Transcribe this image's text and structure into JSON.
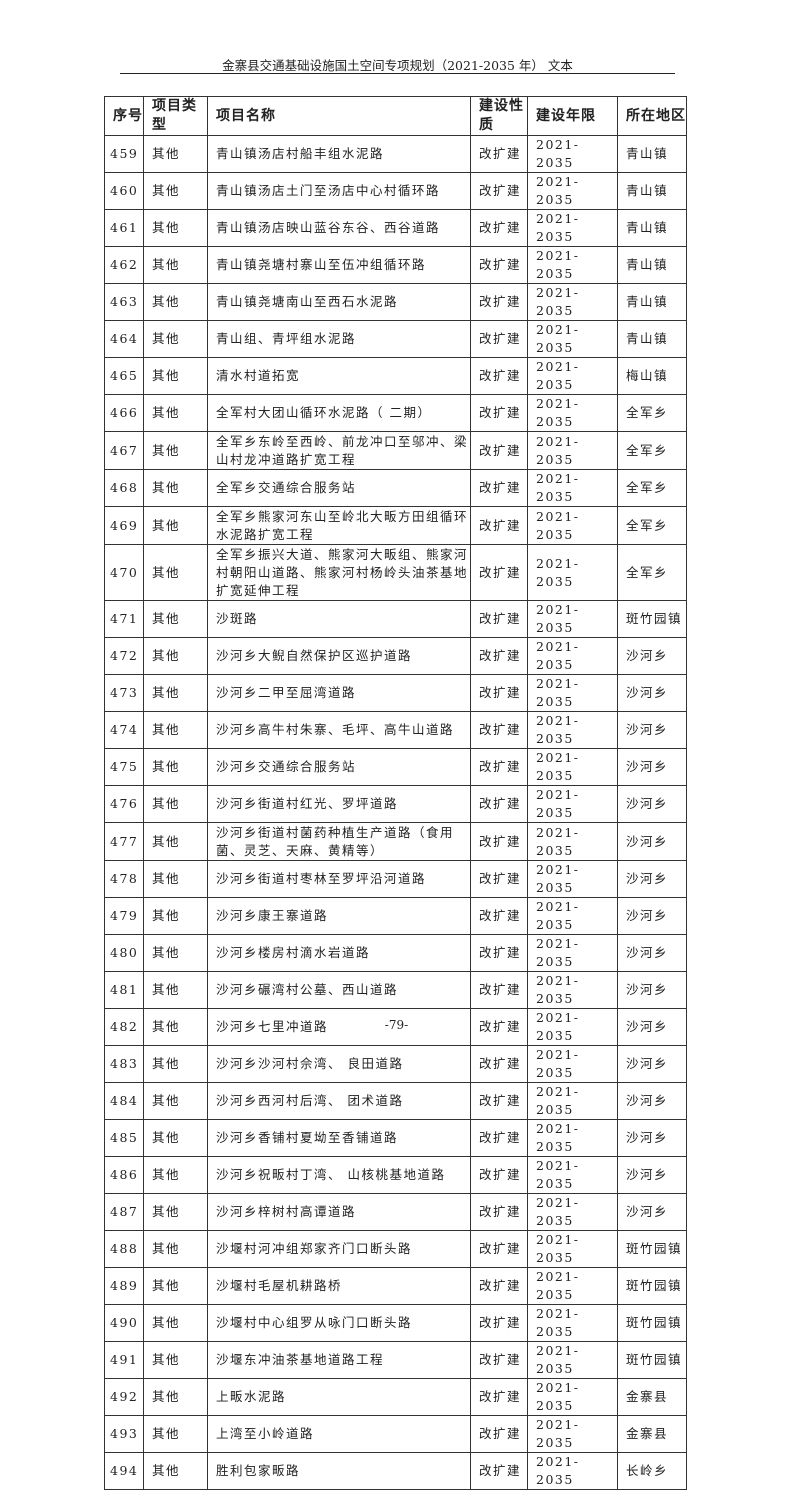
{
  "header": {
    "title": "金寨县交通基础设施国土空间专项规划（2021-2035 年） 文本"
  },
  "table": {
    "columns": [
      "序号",
      "项目类型",
      "项目名称",
      "建设性质",
      "建设年限",
      "所在地区"
    ],
    "rows": [
      [
        "459",
        "其他",
        "青山镇汤店村船丰组水泥路",
        "改扩建",
        "2021-2035",
        "青山镇"
      ],
      [
        "460",
        "其他",
        "青山镇汤店土门至汤店中心村循环路",
        "改扩建",
        "2021-2035",
        "青山镇"
      ],
      [
        "461",
        "其他",
        "青山镇汤店映山蓝谷东谷、西谷道路",
        "改扩建",
        "2021-2035",
        "青山镇"
      ],
      [
        "462",
        "其他",
        "青山镇尧塘村寨山至伍冲组循环路",
        "改扩建",
        "2021-2035",
        "青山镇"
      ],
      [
        "463",
        "其他",
        "青山镇尧塘南山至西石水泥路",
        "改扩建",
        "2021-2035",
        "青山镇"
      ],
      [
        "464",
        "其他",
        "青山组、青坪组水泥路",
        "改扩建",
        "2021-2035",
        "青山镇"
      ],
      [
        "465",
        "其他",
        "清水村道拓宽",
        "改扩建",
        "2021-2035",
        "梅山镇"
      ],
      [
        "466",
        "其他",
        "全军村大团山循环水泥路（ 二期）",
        "改扩建",
        "2021-2035",
        "全军乡"
      ],
      [
        "467",
        "其他",
        "全军乡东岭至西岭、前龙冲口至邬冲、梁山村龙冲道路扩宽工程",
        "改扩建",
        "2021-2035",
        "全军乡"
      ],
      [
        "468",
        "其他",
        "全军乡交通综合服务站",
        "改扩建",
        "2021-2035",
        "全军乡"
      ],
      [
        "469",
        "其他",
        "全军乡熊家河东山至岭北大畈方田组循环水泥路扩宽工程",
        "改扩建",
        "2021-2035",
        "全军乡"
      ],
      [
        "470",
        "其他",
        "全军乡振兴大道、熊家河大畈组、熊家河村朝阳山道路、熊家河村杨岭头油茶基地扩宽延伸工程",
        "改扩建",
        "2021-2035",
        "全军乡"
      ],
      [
        "471",
        "其他",
        "沙斑路",
        "改扩建",
        "2021-2035",
        "斑竹园镇"
      ],
      [
        "472",
        "其他",
        "沙河乡大鲵自然保护区巡护道路",
        "改扩建",
        "2021-2035",
        "沙河乡"
      ],
      [
        "473",
        "其他",
        "沙河乡二甲至屈湾道路",
        "改扩建",
        "2021-2035",
        "沙河乡"
      ],
      [
        "474",
        "其他",
        "沙河乡高牛村朱寨、毛坪、高牛山道路",
        "改扩建",
        "2021-2035",
        "沙河乡"
      ],
      [
        "475",
        "其他",
        "沙河乡交通综合服务站",
        "改扩建",
        "2021-2035",
        "沙河乡"
      ],
      [
        "476",
        "其他",
        "沙河乡街道村红光、罗坪道路",
        "改扩建",
        "2021-2035",
        "沙河乡"
      ],
      [
        "477",
        "其他",
        "沙河乡街道村菌药种植生产道路（食用菌、灵芝、天麻、黄精等）",
        "改扩建",
        "2021-2035",
        "沙河乡"
      ],
      [
        "478",
        "其他",
        "沙河乡街道村枣林至罗坪沿河道路",
        "改扩建",
        "2021-2035",
        "沙河乡"
      ],
      [
        "479",
        "其他",
        "沙河乡康王寨道路",
        "改扩建",
        "2021-2035",
        "沙河乡"
      ],
      [
        "480",
        "其他",
        "沙河乡楼房村滴水岩道路",
        "改扩建",
        "2021-2035",
        "沙河乡"
      ],
      [
        "481",
        "其他",
        "沙河乡碾湾村公墓、西山道路",
        "改扩建",
        "2021-2035",
        "沙河乡"
      ],
      [
        "482",
        "其他",
        "沙河乡七里冲道路",
        "改扩建",
        "2021-2035",
        "沙河乡"
      ],
      [
        "483",
        "其他",
        "沙河乡沙河村佘湾、 良田道路",
        "改扩建",
        "2021-2035",
        "沙河乡"
      ],
      [
        "484",
        "其他",
        "沙河乡西河村后湾、 团术道路",
        "改扩建",
        "2021-2035",
        "沙河乡"
      ],
      [
        "485",
        "其他",
        "沙河乡香铺村夏坳至香铺道路",
        "改扩建",
        "2021-2035",
        "沙河乡"
      ],
      [
        "486",
        "其他",
        "沙河乡祝畈村丁湾、 山核桃基地道路",
        "改扩建",
        "2021-2035",
        "沙河乡"
      ],
      [
        "487",
        "其他",
        "沙河乡梓树村高谭道路",
        "改扩建",
        "2021-2035",
        "沙河乡"
      ],
      [
        "488",
        "其他",
        "沙堰村河冲组郑家齐门口断头路",
        "改扩建",
        "2021-2035",
        "斑竹园镇"
      ],
      [
        "489",
        "其他",
        "沙堰村毛屋机耕路桥",
        "改扩建",
        "2021-2035",
        "斑竹园镇"
      ],
      [
        "490",
        "其他",
        "沙堰村中心组罗从咏门口断头路",
        "改扩建",
        "2021-2035",
        "斑竹园镇"
      ],
      [
        "491",
        "其他",
        "沙堰东冲油茶基地道路工程",
        "改扩建",
        "2021-2035",
        "斑竹园镇"
      ],
      [
        "492",
        "其他",
        "上畈水泥路",
        "改扩建",
        "2021-2035",
        "金寨县"
      ],
      [
        "493",
        "其他",
        "上湾至小岭道路",
        "改扩建",
        "2021-2035",
        "金寨县"
      ],
      [
        "494",
        "其他",
        "胜利包家畈路",
        "改扩建",
        "2021-2035",
        "长岭乡"
      ]
    ]
  },
  "footer": {
    "page_number": "-79-"
  }
}
